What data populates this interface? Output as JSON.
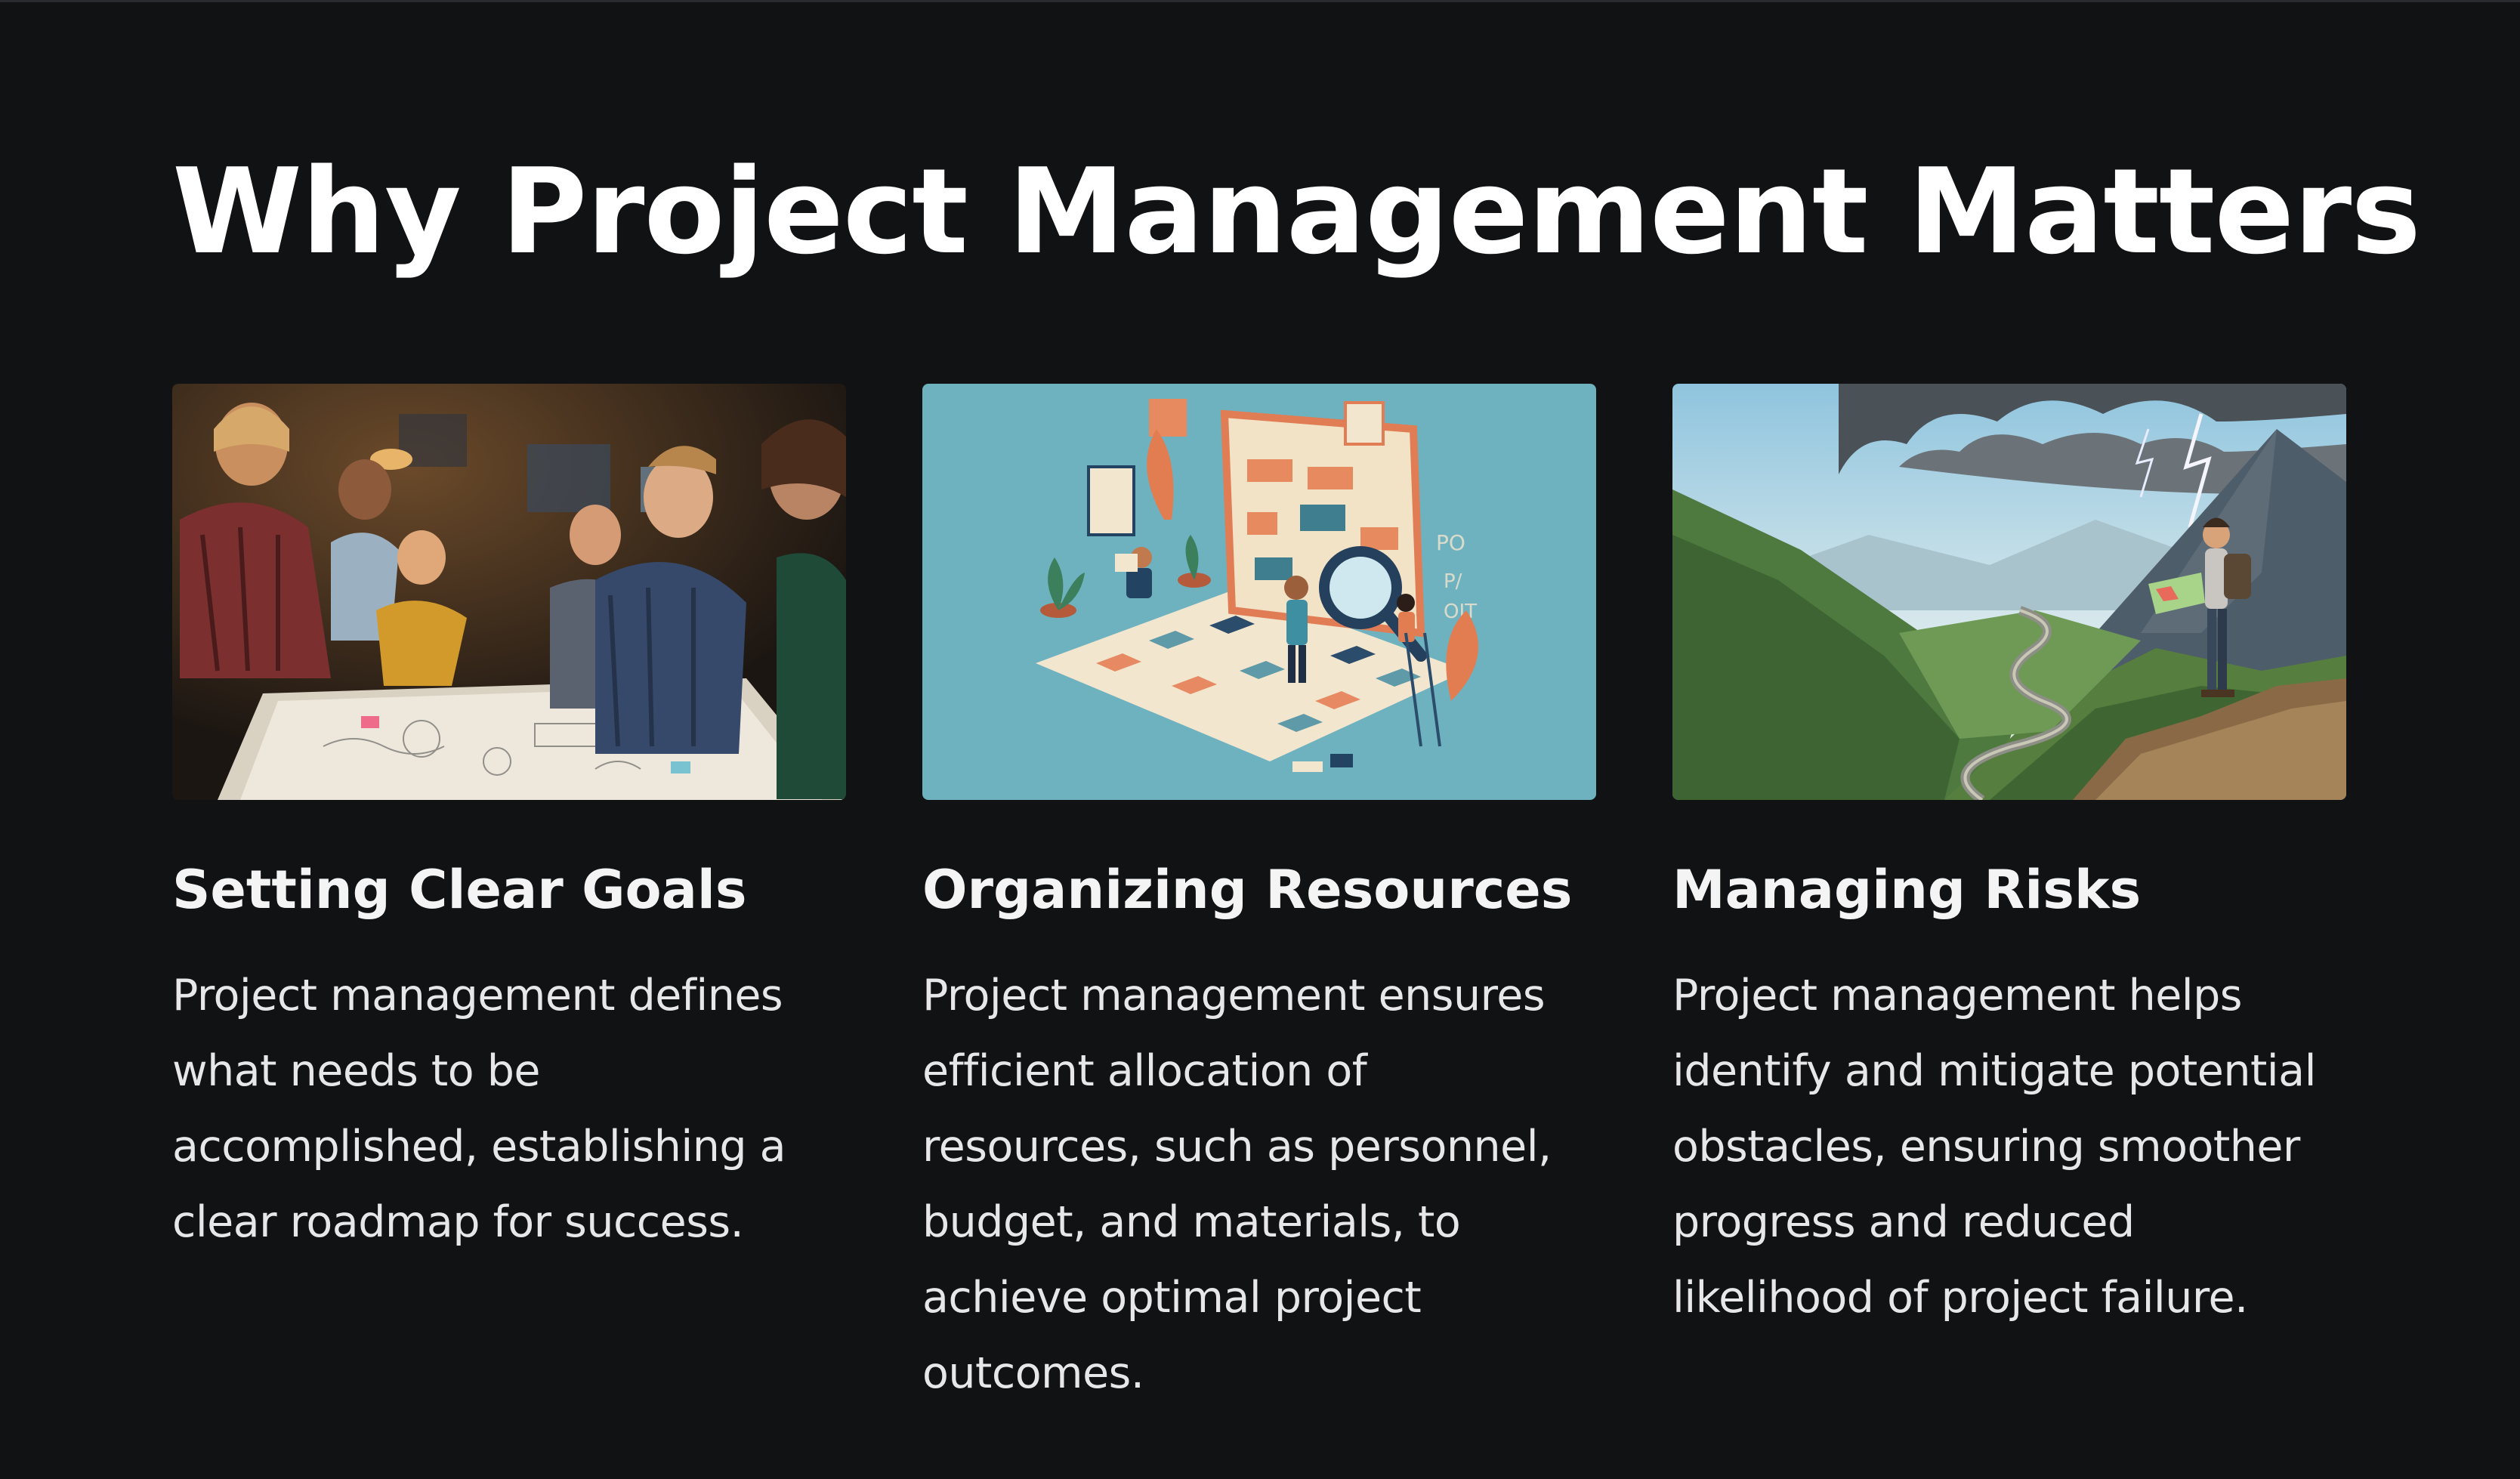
{
  "slide": {
    "title": "Why Project Management Matters"
  },
  "cards": [
    {
      "heading": "Setting Clear Goals",
      "body": "Project management defines what needs to be accomplished, establishing a clear roadmap for success.",
      "image_subject": "team-planning-photo"
    },
    {
      "heading": "Organizing Resources",
      "body": "Project management ensures efficient allocation of resources, such as personnel, budget, and materials, to achieve optimal project outcomes.",
      "image_subject": "resource-planning-illustration"
    },
    {
      "heading": "Managing Risks",
      "body": "Project management helps identify and mitigate potential obstacles, ensuring smoother progress and reduced likelihood of project failure.",
      "image_subject": "mountain-hiker-storm-illustration"
    }
  ],
  "colors": {
    "background": "#111214",
    "title": "#ffffff",
    "heading": "#f4f4f5",
    "body": "#e7e7ea"
  }
}
